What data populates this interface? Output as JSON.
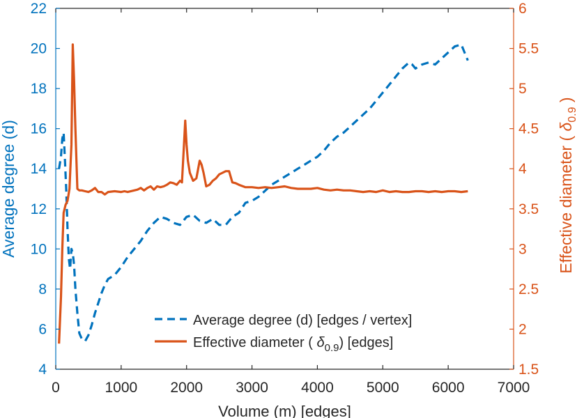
{
  "chart_data": {
    "type": "line",
    "title": "",
    "xlabel": "Volume (m) [edges]",
    "ylabel_left": "Average degree (d)",
    "ylabel_right_prefix": "Effective diameter (",
    "ylabel_right_symbol": "δ",
    "ylabel_right_sub": "0.9",
    "ylabel_right_suffix": ")",
    "xlim": [
      0,
      7000
    ],
    "ylim_left": [
      4,
      22
    ],
    "ylim_right": [
      1.5,
      6
    ],
    "xticks": [
      0,
      1000,
      2000,
      3000,
      4000,
      5000,
      6000,
      7000
    ],
    "yticks_left": [
      4,
      6,
      8,
      10,
      12,
      14,
      16,
      18,
      20,
      22
    ],
    "yticks_right": [
      "1.5",
      "2",
      "2.5",
      "3",
      "3.5",
      "4",
      "4.5",
      "5",
      "5.5",
      "6"
    ],
    "grid": false,
    "legend_position": "bottom-center",
    "colors": {
      "left_axis": "#0072BD",
      "right_axis": "#D95319",
      "axes_box": "#262626"
    },
    "series": [
      {
        "name": "Average degree (d) [edges / vertex]",
        "axis": "left",
        "style": "dashed",
        "color": "#0072BD",
        "x": [
          50,
          80,
          100,
          120,
          140,
          160,
          180,
          200,
          220,
          240,
          260,
          280,
          300,
          330,
          360,
          400,
          450,
          500,
          550,
          600,
          650,
          700,
          750,
          800,
          900,
          1000,
          1100,
          1200,
          1300,
          1400,
          1500,
          1600,
          1700,
          1800,
          1900,
          2000,
          2100,
          2200,
          2300,
          2400,
          2500,
          2600,
          2700,
          2800,
          2900,
          3000,
          3100,
          3200,
          3300,
          3400,
          3500,
          3600,
          3700,
          3800,
          3900,
          4000,
          4100,
          4200,
          4300,
          4400,
          4500,
          4600,
          4700,
          4800,
          4900,
          5000,
          5100,
          5200,
          5300,
          5400,
          5450,
          5500,
          5600,
          5700,
          5800,
          5900,
          6000,
          6100,
          6200,
          6250,
          6300
        ],
        "y": [
          14.0,
          14.6,
          15.5,
          15.8,
          14.5,
          13.0,
          11.0,
          9.5,
          9.0,
          10.0,
          9.8,
          9.2,
          8.0,
          6.8,
          5.8,
          5.5,
          5.4,
          5.7,
          6.2,
          6.8,
          7.3,
          7.8,
          8.2,
          8.5,
          8.7,
          9.1,
          9.6,
          10.0,
          10.4,
          10.9,
          11.3,
          11.6,
          11.5,
          11.3,
          11.2,
          11.6,
          11.7,
          11.4,
          11.3,
          11.5,
          11.2,
          11.2,
          11.6,
          11.8,
          12.3,
          12.4,
          12.6,
          12.9,
          13.2,
          13.4,
          13.6,
          13.8,
          14.0,
          14.2,
          14.4,
          14.6,
          14.9,
          15.3,
          15.6,
          15.8,
          16.1,
          16.4,
          16.7,
          17.0,
          17.4,
          17.8,
          18.2,
          18.6,
          19.0,
          19.3,
          19.2,
          19.0,
          19.2,
          19.3,
          19.2,
          19.5,
          19.8,
          20.1,
          20.2,
          19.8,
          19.4
        ]
      },
      {
        "name": "Effective diameter (δ0.9) [edges]",
        "axis": "right",
        "style": "solid",
        "color": "#D95319",
        "x": [
          50,
          80,
          100,
          120,
          150,
          180,
          210,
          240,
          260,
          280,
          300,
          330,
          360,
          400,
          450,
          500,
          550,
          600,
          650,
          700,
          750,
          800,
          900,
          1000,
          1050,
          1100,
          1200,
          1250,
          1300,
          1350,
          1400,
          1450,
          1500,
          1550,
          1600,
          1650,
          1700,
          1750,
          1800,
          1850,
          1900,
          1930,
          1960,
          1980,
          2000,
          2020,
          2050,
          2100,
          2150,
          2200,
          2230,
          2260,
          2300,
          2350,
          2400,
          2450,
          2500,
          2550,
          2600,
          2650,
          2700,
          2750,
          2800,
          2900,
          3000,
          3100,
          3200,
          3300,
          3400,
          3500,
          3600,
          3700,
          3800,
          3900,
          4000,
          4100,
          4200,
          4300,
          4400,
          4500,
          4600,
          4700,
          4800,
          4900,
          5000,
          5100,
          5200,
          5300,
          5400,
          5500,
          5600,
          5700,
          5800,
          5900,
          6000,
          6100,
          6200,
          6300
        ],
        "y": [
          1.82,
          2.4,
          3.0,
          3.45,
          3.55,
          3.6,
          3.75,
          4.3,
          5.55,
          5.1,
          4.5,
          3.75,
          3.73,
          3.73,
          3.72,
          3.71,
          3.73,
          3.76,
          3.71,
          3.71,
          3.68,
          3.71,
          3.72,
          3.71,
          3.72,
          3.71,
          3.73,
          3.74,
          3.76,
          3.73,
          3.76,
          3.78,
          3.74,
          3.78,
          3.77,
          3.78,
          3.8,
          3.83,
          3.82,
          3.8,
          3.85,
          3.83,
          4.3,
          4.6,
          4.3,
          4.1,
          3.95,
          3.85,
          3.88,
          4.1,
          4.05,
          3.95,
          3.78,
          3.8,
          3.85,
          3.88,
          3.93,
          3.95,
          3.97,
          3.97,
          3.83,
          3.82,
          3.8,
          3.77,
          3.77,
          3.76,
          3.77,
          3.76,
          3.77,
          3.78,
          3.76,
          3.75,
          3.75,
          3.75,
          3.76,
          3.74,
          3.73,
          3.74,
          3.73,
          3.73,
          3.72,
          3.71,
          3.72,
          3.71,
          3.73,
          3.71,
          3.72,
          3.71,
          3.71,
          3.72,
          3.72,
          3.71,
          3.72,
          3.71,
          3.72,
          3.72,
          3.71,
          3.72
        ]
      }
    ]
  }
}
